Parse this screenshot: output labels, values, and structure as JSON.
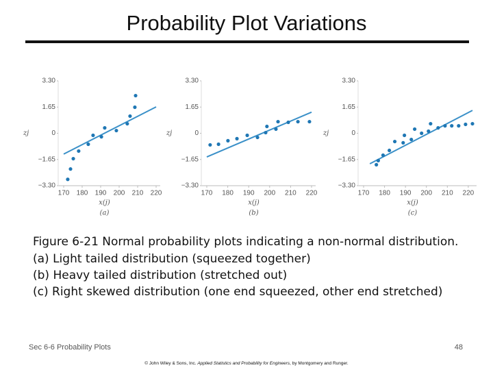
{
  "title": "Probability Plot Variations",
  "caption": [
    "Figure 6-21  Normal probability plots indicating a non-normal distribution.",
    "(a) Light tailed distribution (squeezed together)",
    "(b) Heavy tailed distribution (stretched out)",
    "(c) Right skewed distribution (one end squeezed, other end stretched)"
  ],
  "footer": {
    "section": "Sec 6-6 Probability Plots",
    "page": "48",
    "copyright": [
      "© John Wiley & Sons, Inc.  ",
      "Applied Statistics and Probability for Engineers",
      ", by Montgomery and Runger."
    ]
  },
  "chart_data": [
    {
      "type": "scatter",
      "panel": "(a)",
      "xlabel": "x(j)",
      "ylabel": "zj",
      "color": "#1f77b4",
      "x": [
        172.2,
        173.7,
        175.2,
        178.1,
        183.3,
        185.9,
        190.4,
        192.2,
        198.5,
        204.4,
        205.9,
        208.5,
        208.9
      ],
      "values": [
        -2.9,
        -2.25,
        -1.6,
        -1.12,
        -0.69,
        -0.13,
        -0.22,
        0.34,
        0.17,
        0.6,
        1.08,
        1.64,
        2.37
      ],
      "fit": {
        "x": [
          170,
          220
        ],
        "y": [
          -1.31,
          1.66
        ],
        "color": "#3a90c8"
      },
      "xlim": [
        170,
        220
      ],
      "ylim": [
        -3.3,
        3.3
      ],
      "xticks": [
        170,
        180,
        190,
        200,
        210,
        220
      ],
      "yticks": [
        {
          "value": -3.3,
          "label": "−3.30"
        },
        {
          "value": -1.65,
          "label": "−1.65"
        },
        0,
        1.65,
        {
          "value": 3.3,
          "label": "3.30"
        }
      ]
    },
    {
      "type": "scatter",
      "panel": "(b)",
      "xlabel": "x(j)",
      "ylabel": "zj",
      "color": "#1f77b4",
      "x": [
        171.6,
        175.6,
        180.1,
        184.4,
        189.3,
        194.2,
        198.1,
        198.7,
        203,
        204,
        208.9,
        213.5,
        219
      ],
      "values": [
        -0.73,
        -0.69,
        -0.47,
        -0.34,
        -0.13,
        -0.26,
        0.04,
        0.43,
        0.26,
        0.73,
        0.69,
        0.73,
        0.73
      ],
      "fit": {
        "x": [
          170,
          220
        ],
        "y": [
          -1.49,
          1.33
        ],
        "color": "#3a90c8"
      },
      "xlim": [
        170,
        220
      ],
      "ylim": [
        -3.3,
        3.3
      ],
      "xticks": [
        170,
        180,
        190,
        200,
        210,
        220
      ],
      "yticks": [
        {
          "value": -3.3,
          "label": "−3.30"
        },
        {
          "value": -1.65,
          "label": "−1.65"
        },
        0,
        1.65,
        {
          "value": 3.3,
          "label": "3.30"
        }
      ]
    },
    {
      "type": "scatter",
      "panel": "(c)",
      "xlabel": "x(j)",
      "ylabel": "zj",
      "color": "#1f77b4",
      "x": [
        176.1,
        177,
        179.3,
        182.3,
        184.9,
        188.9,
        189.5,
        192.8,
        194.4,
        197.7,
        201,
        202,
        205.6,
        208.9,
        212.1,
        215.4,
        218.7,
        222
      ],
      "values": [
        -1.98,
        -1.72,
        -1.38,
        -1.08,
        -0.52,
        -0.6,
        -0.13,
        -0.39,
        0.26,
        0,
        0.13,
        0.6,
        0.34,
        0.47,
        0.47,
        0.47,
        0.56,
        0.6
      ],
      "fit": {
        "x": [
          173,
          222
        ],
        "y": [
          -1.92,
          1.44
        ],
        "color": "#3a90c8"
      },
      "xlim": [
        170,
        222
      ],
      "ylim": [
        -3.3,
        3.3
      ],
      "xticks": [
        170,
        180,
        190,
        200,
        210,
        220
      ],
      "yticks": [
        {
          "value": -3.3,
          "label": "−3.30"
        },
        {
          "value": -1.65,
          "label": "−1.65"
        },
        0,
        1.65,
        {
          "value": 3.3,
          "label": "3.30"
        }
      ]
    }
  ]
}
